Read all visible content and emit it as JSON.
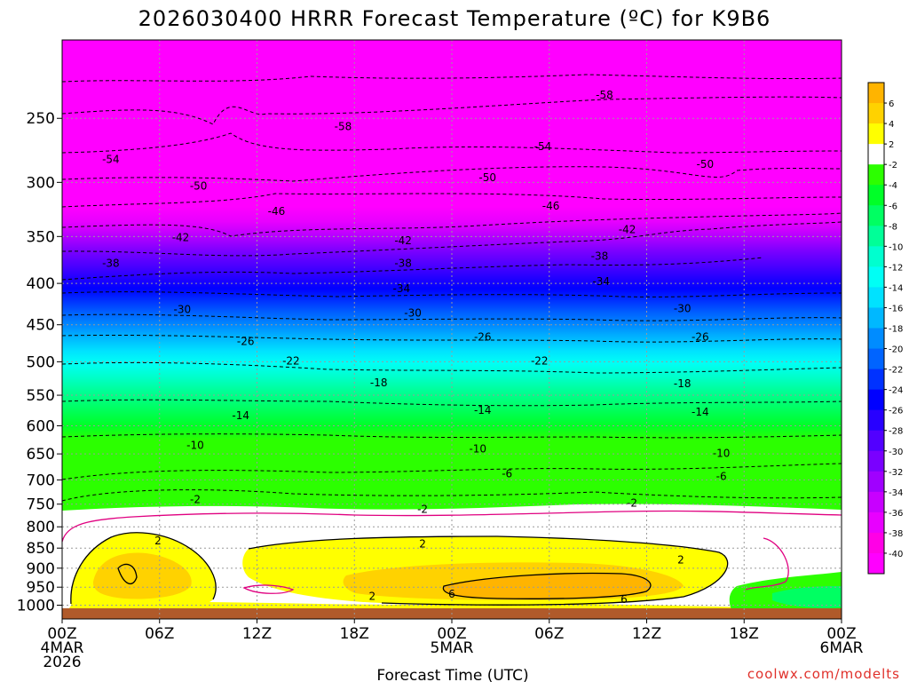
{
  "chart_data": {
    "type": "heatmap",
    "title": "2026030400 HRRR Forecast Temperature (ºC) for K9B6",
    "xlabel": "Forecast Time (UTC)",
    "ylabel": "",
    "y_scale": "log",
    "y_reversed": true,
    "y_range": [
      200,
      1040
    ],
    "x_range_hours": [
      0,
      48
    ],
    "y_ticks": [
      250,
      300,
      350,
      400,
      450,
      500,
      550,
      600,
      650,
      700,
      750,
      800,
      850,
      900,
      950,
      1000
    ],
    "x_ticks": [
      {
        "hour": 0,
        "lines": [
          "00Z",
          "4MAR",
          "2026"
        ]
      },
      {
        "hour": 6,
        "lines": [
          "06Z"
        ]
      },
      {
        "hour": 12,
        "lines": [
          "12Z"
        ]
      },
      {
        "hour": 18,
        "lines": [
          "18Z"
        ]
      },
      {
        "hour": 24,
        "lines": [
          "00Z",
          "5MAR"
        ]
      },
      {
        "hour": 30,
        "lines": [
          "06Z"
        ]
      },
      {
        "hour": 36,
        "lines": [
          "12Z"
        ]
      },
      {
        "hour": 42,
        "lines": [
          "18Z"
        ]
      },
      {
        "hour": 48,
        "lines": [
          "00Z",
          "6MAR"
        ]
      }
    ],
    "grid": true,
    "colorbar": {
      "placement": "right",
      "labels": [
        "6",
        "4",
        "2",
        "-2",
        "-4",
        "-6",
        "-8",
        "-10",
        "-12",
        "-14",
        "-16",
        "-18",
        "-20",
        "-22",
        "-24",
        "-26",
        "-28",
        "-30",
        "-32",
        "-34",
        "-36",
        "-38",
        "-40"
      ],
      "colors": [
        "#ffb400",
        "#ffd200",
        "#ffff00",
        "#ffffff",
        "#2cff00",
        "#00ff28",
        "#00ff62",
        "#00ff98",
        "#00ffcf",
        "#00fff5",
        "#00e2ff",
        "#00b8ff",
        "#008cff",
        "#0064ff",
        "#0032ff",
        "#0000ff",
        "#2800ff",
        "#5200ff",
        "#7a00ff",
        "#a000ff",
        "#c800ff",
        "#e800ff",
        "#ff00e6",
        "#ff00ff"
      ]
    },
    "contour_labels": [
      {
        "value": "-58",
        "hour": 17.3,
        "p": 256
      },
      {
        "value": "-58",
        "hour": 33.4,
        "p": 234
      },
      {
        "value": "-54",
        "hour": 3.0,
        "p": 281
      },
      {
        "value": "-54",
        "hour": 29.6,
        "p": 271
      },
      {
        "value": "-50",
        "hour": 8.4,
        "p": 303
      },
      {
        "value": "-50",
        "hour": 26.2,
        "p": 296
      },
      {
        "value": "-50",
        "hour": 39.6,
        "p": 285
      },
      {
        "value": "-46",
        "hour": 13.2,
        "p": 326
      },
      {
        "value": "-46",
        "hour": 30.1,
        "p": 321
      },
      {
        "value": "-42",
        "hour": 7.3,
        "p": 351
      },
      {
        "value": "-42",
        "hour": 21.0,
        "p": 354
      },
      {
        "value": "-42",
        "hour": 34.8,
        "p": 343
      },
      {
        "value": "-38",
        "hour": 3.0,
        "p": 378
      },
      {
        "value": "-38",
        "hour": 21.0,
        "p": 378
      },
      {
        "value": "-38",
        "hour": 33.1,
        "p": 370
      },
      {
        "value": "-34",
        "hour": 20.9,
        "p": 406
      },
      {
        "value": "-34",
        "hour": 33.2,
        "p": 398
      },
      {
        "value": "-30",
        "hour": 7.4,
        "p": 431
      },
      {
        "value": "-30",
        "hour": 21.6,
        "p": 435
      },
      {
        "value": "-30",
        "hour": 38.2,
        "p": 430
      },
      {
        "value": "-26",
        "hour": 11.3,
        "p": 472
      },
      {
        "value": "-26",
        "hour": 25.9,
        "p": 466
      },
      {
        "value": "-26",
        "hour": 39.3,
        "p": 466
      },
      {
        "value": "-22",
        "hour": 14.1,
        "p": 499
      },
      {
        "value": "-22",
        "hour": 29.4,
        "p": 499
      },
      {
        "value": "-18",
        "hour": 19.5,
        "p": 531
      },
      {
        "value": "-18",
        "hour": 38.2,
        "p": 532
      },
      {
        "value": "-14",
        "hour": 11.0,
        "p": 583
      },
      {
        "value": "-14",
        "hour": 25.9,
        "p": 574
      },
      {
        "value": "-14",
        "hour": 39.3,
        "p": 577
      },
      {
        "value": "-10",
        "hour": 8.2,
        "p": 634
      },
      {
        "value": "-10",
        "hour": 25.6,
        "p": 641
      },
      {
        "value": "-10",
        "hour": 40.6,
        "p": 649
      },
      {
        "value": "-6",
        "hour": 27.4,
        "p": 688
      },
      {
        "value": "-6",
        "hour": 40.6,
        "p": 693
      },
      {
        "value": "-2",
        "hour": 8.2,
        "p": 740
      },
      {
        "value": "-2",
        "hour": 22.2,
        "p": 761
      },
      {
        "value": "-2",
        "hour": 35.1,
        "p": 748
      },
      {
        "value": "2",
        "hour": 5.9,
        "p": 832
      },
      {
        "value": "2",
        "hour": 22.2,
        "p": 840
      },
      {
        "value": "2",
        "hour": 38.1,
        "p": 879
      },
      {
        "value": "2",
        "hour": 19.1,
        "p": 975
      },
      {
        "value": "6",
        "hour": 24.0,
        "p": 969
      },
      {
        "value": "6",
        "hour": 34.6,
        "p": 984
      }
    ]
  },
  "credit": "coolwx.com/modelts"
}
